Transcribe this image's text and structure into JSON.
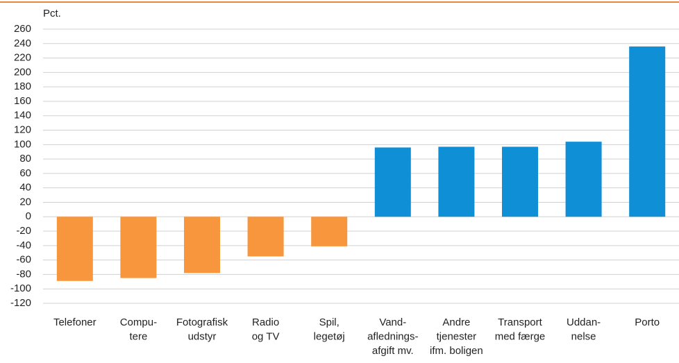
{
  "chart_data": {
    "type": "bar",
    "ylabel": "Pct.",
    "categories": [
      [
        "Telefoner"
      ],
      [
        "Compu-",
        "tere"
      ],
      [
        "Fotografisk",
        "udstyr"
      ],
      [
        "Radio",
        "og TV"
      ],
      [
        "Spil,",
        "legetøj"
      ],
      [
        "Vand-",
        "aflednings-",
        "afgift mv."
      ],
      [
        "Andre",
        "tjenester",
        "ifm. boligen"
      ],
      [
        "Transport",
        "med færge"
      ],
      [
        "Uddan-",
        "nelse"
      ],
      [
        "Porto"
      ]
    ],
    "values": [
      -89,
      -85,
      -78,
      -55,
      -41,
      96,
      97,
      97,
      104,
      236
    ],
    "colors": [
      "#f7963c",
      "#f7963c",
      "#f7963c",
      "#f7963c",
      "#f7963c",
      "#0f8fd6",
      "#0f8fd6",
      "#0f8fd6",
      "#0f8fd6",
      "#0f8fd6"
    ],
    "ylim": [
      -120,
      260
    ],
    "yticks": [
      -120,
      -100,
      -80,
      -60,
      -40,
      -20,
      0,
      20,
      40,
      60,
      80,
      100,
      120,
      140,
      160,
      180,
      200,
      220,
      240,
      260
    ],
    "grid": true
  }
}
